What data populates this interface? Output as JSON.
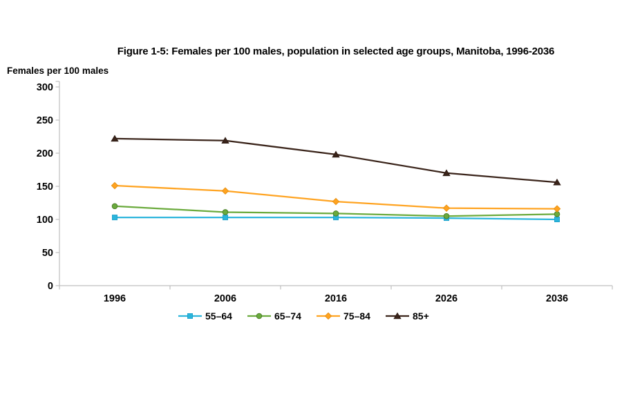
{
  "page": {
    "background_color": "#ffffff"
  },
  "chart_data": {
    "type": "line",
    "title": "Figure 1-5: Females per 100 males, population in selected age groups, Manitoba, 1996-2036",
    "ylabel": "Females per 100 males",
    "xlabel": "",
    "categories": [
      "1996",
      "2006",
      "2016",
      "2026",
      "2036"
    ],
    "ylim": [
      0,
      300
    ],
    "yticks": [
      0,
      50,
      100,
      150,
      200,
      250,
      300
    ],
    "grid": false,
    "legend_position": "bottom",
    "axis_color": "#bfbfbf",
    "tick_label_color": "#000000",
    "series": [
      {
        "name": "55–64",
        "marker": "square",
        "color": "#2bb5dc",
        "marker_edge": "#1ea3cc",
        "values": [
          103,
          103,
          103,
          102,
          100
        ]
      },
      {
        "name": "65–74",
        "marker": "circle",
        "color": "#6aaa3c",
        "marker_edge": "#4c7f2b",
        "values": [
          120,
          111,
          109,
          105,
          108
        ]
      },
      {
        "name": "75–84",
        "marker": "diamond",
        "color": "#ffa320",
        "marker_edge": "#e89112",
        "values": [
          151,
          143,
          127,
          117,
          116
        ]
      },
      {
        "name": "85+",
        "marker": "triangle",
        "color": "#3a241a",
        "marker_edge": "#2d1a12",
        "values": [
          222,
          219,
          198,
          170,
          156
        ]
      }
    ]
  }
}
